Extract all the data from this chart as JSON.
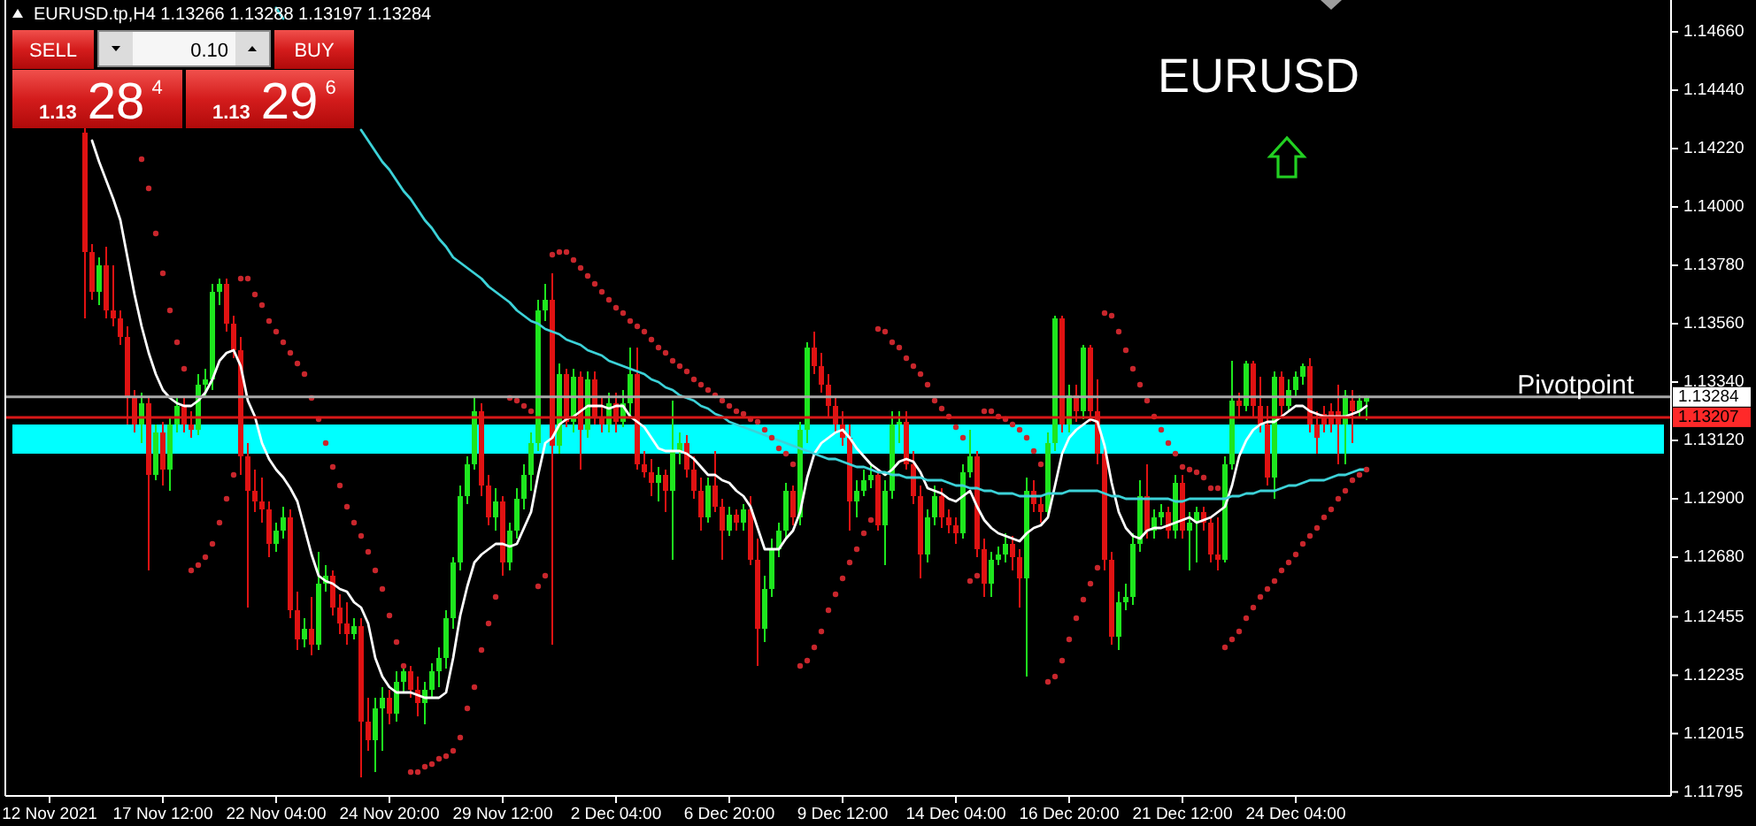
{
  "chart_data": {
    "type": "candlestick",
    "title": "EURUSD",
    "categories": [
      "12 Nov 2021",
      null,
      null,
      null,
      null,
      null,
      null,
      null,
      null,
      null,
      null,
      null,
      null,
      null,
      null,
      null,
      "17 Nov 12:00",
      null,
      null,
      null,
      null,
      null,
      null,
      null,
      null,
      null,
      null,
      null,
      null,
      null,
      null,
      null,
      "22 Nov 04:00",
      null,
      null,
      null,
      null,
      null,
      null,
      null,
      null,
      null,
      null,
      null,
      null,
      null,
      null,
      null,
      "24 Nov 20:00",
      null,
      null,
      null,
      null,
      null,
      null,
      null,
      null,
      null,
      null,
      null,
      null,
      null,
      null,
      null,
      "29 Nov 12:00",
      null,
      null,
      null,
      null,
      null,
      null,
      null,
      null,
      null,
      null,
      null,
      null,
      null,
      null,
      null,
      "2 Dec 04:00",
      null,
      null,
      null,
      null,
      null,
      null,
      null,
      null,
      null,
      null,
      null,
      null,
      null,
      null,
      null,
      "6 Dec 20:00",
      null,
      null,
      null,
      null,
      null,
      null,
      null,
      null,
      null,
      null,
      null,
      null,
      null,
      null,
      null,
      "9 Dec 12:00",
      null,
      null,
      null,
      null,
      null,
      null,
      null,
      null,
      null,
      null,
      null,
      null,
      null,
      null,
      null,
      "14 Dec 04:00",
      null,
      null,
      null,
      null,
      null,
      null,
      null,
      null,
      null,
      null,
      null,
      null,
      null,
      null,
      null,
      "16 Dec 20:00",
      null,
      null,
      null,
      null,
      null,
      null,
      null,
      null,
      null,
      null,
      null,
      null,
      null,
      null,
      null,
      "21 Dec 12:00",
      null,
      null,
      null,
      null,
      null,
      null,
      null,
      null,
      null,
      null,
      null,
      null,
      null,
      null,
      null,
      "24 Dec 04:00",
      null,
      null,
      null,
      null,
      null,
      null,
      null,
      null,
      null,
      null
    ],
    "ohlc": [
      null,
      null,
      null,
      null,
      null,
      [
        1.1428,
        1.143,
        1.1358,
        1.1383
      ],
      [
        1.1383,
        1.1386,
        1.1365,
        1.1368
      ],
      [
        1.1368,
        1.1381,
        1.1363,
        1.1378
      ],
      [
        1.1378,
        1.1385,
        1.1358,
        1.1361
      ],
      [
        1.1361,
        1.1378,
        1.1355,
        1.1358
      ],
      [
        1.1358,
        1.1361,
        1.1348,
        1.1351
      ],
      [
        1.1351,
        1.1355,
        1.1318,
        1.1328
      ],
      [
        1.1328,
        1.1331,
        1.1315,
        1.1318
      ],
      [
        1.1318,
        1.133,
        1.1311,
        1.1326
      ],
      [
        1.1326,
        1.1328,
        1.1263,
        1.1299
      ],
      [
        1.1299,
        1.1318,
        1.1297,
        1.1315
      ],
      [
        1.1315,
        1.1319,
        1.1295,
        1.1301
      ],
      [
        1.1301,
        1.1321,
        1.1293,
        1.1318
      ],
      [
        1.1318,
        1.1328,
        1.1315,
        1.1325
      ],
      [
        1.1325,
        1.1328,
        1.1315,
        1.1318
      ],
      [
        1.1318,
        1.1323,
        1.1313,
        1.1316
      ],
      [
        1.1316,
        1.1337,
        1.1314,
        1.1333
      ],
      [
        1.1333,
        1.1339,
        1.1328,
        1.1335
      ],
      [
        1.1335,
        1.1371,
        1.1331,
        1.1368
      ],
      [
        1.1368,
        1.1373,
        1.1363,
        1.1371
      ],
      [
        1.1371,
        1.1373,
        1.1353,
        1.1356
      ],
      [
        1.1356,
        1.1359,
        1.1343,
        1.1346
      ],
      [
        1.1346,
        1.1351,
        1.1299,
        1.1306
      ],
      [
        1.1306,
        1.1311,
        1.1249,
        1.1293
      ],
      [
        1.1293,
        1.1301,
        1.1285,
        1.1289
      ],
      [
        1.1289,
        1.1298,
        1.1281,
        1.1286
      ],
      [
        1.1286,
        1.1289,
        1.1268,
        1.1273
      ],
      [
        1.1273,
        1.1281,
        1.127,
        1.1278
      ],
      [
        1.1278,
        1.1287,
        1.1275,
        1.1283
      ],
      [
        1.1283,
        1.1286,
        1.1245,
        1.1248
      ],
      [
        1.1248,
        1.1255,
        1.1233,
        1.1237
      ],
      [
        1.1237,
        1.1245,
        1.1234,
        1.1241
      ],
      [
        1.1241,
        1.1253,
        1.1231,
        1.1235
      ],
      [
        1.1235,
        1.127,
        1.1233,
        1.1258
      ],
      [
        1.1258,
        1.1265,
        1.1255,
        1.1261
      ],
      [
        1.1261,
        1.1263,
        1.1246,
        1.1249
      ],
      [
        1.1249,
        1.1254,
        1.1239,
        1.1243
      ],
      [
        1.1243,
        1.1251,
        1.1235,
        1.1239
      ],
      [
        1.1239,
        1.1245,
        1.1237,
        1.1242
      ],
      [
        1.1242,
        1.1245,
        1.1185,
        1.1206
      ],
      [
        1.1206,
        1.1215,
        1.1195,
        1.1199
      ],
      [
        1.1199,
        1.1215,
        1.1187,
        1.1211
      ],
      [
        1.1211,
        1.1219,
        1.1195,
        1.1215
      ],
      [
        1.1215,
        1.1218,
        1.1205,
        1.1209
      ],
      [
        1.1209,
        1.1225,
        1.1206,
        1.1221
      ],
      [
        1.1221,
        1.1228,
        1.1217,
        1.1225
      ],
      [
        1.1225,
        1.1227,
        1.1215,
        1.1218
      ],
      [
        1.1218,
        1.1223,
        1.1208,
        1.1213
      ],
      [
        1.1213,
        1.1221,
        1.1205,
        1.1218
      ],
      [
        1.1218,
        1.1228,
        1.1215,
        1.1225
      ],
      [
        1.1225,
        1.1234,
        1.1219,
        1.123
      ],
      [
        1.123,
        1.1248,
        1.1226,
        1.1245
      ],
      [
        1.1245,
        1.1268,
        1.1241,
        1.1266
      ],
      [
        1.1266,
        1.1295,
        1.1263,
        1.1291
      ],
      [
        1.1291,
        1.1306,
        1.1288,
        1.1303
      ],
      [
        1.1303,
        1.1328,
        1.1301,
        1.1323
      ],
      [
        1.1323,
        1.1326,
        1.1291,
        1.1295
      ],
      [
        1.1295,
        1.1299,
        1.128,
        1.1283
      ],
      [
        1.1283,
        1.1294,
        1.1278,
        1.1289
      ],
      [
        1.1289,
        1.1291,
        1.1261,
        1.1266
      ],
      [
        1.1266,
        1.1281,
        1.1263,
        1.1278
      ],
      [
        1.1278,
        1.1294,
        1.1275,
        1.129
      ],
      [
        1.129,
        1.1303,
        1.1286,
        1.1299
      ],
      [
        1.1299,
        1.1315,
        1.1293,
        1.1311
      ],
      [
        1.1311,
        1.1365,
        1.1308,
        1.1361
      ],
      [
        1.1361,
        1.1371,
        1.1357,
        1.1365
      ],
      [
        1.1365,
        1.1375,
        1.1235,
        1.131
      ],
      [
        1.131,
        1.1341,
        1.1307,
        1.1337
      ],
      [
        1.1337,
        1.1339,
        1.1317,
        1.1319
      ],
      [
        1.1319,
        1.1339,
        1.1315,
        1.1336
      ],
      [
        1.1336,
        1.1338,
        1.1301,
        1.1316
      ],
      [
        1.1316,
        1.1338,
        1.1313,
        1.1335
      ],
      [
        1.1335,
        1.1338,
        1.1318,
        1.1321
      ],
      [
        1.1321,
        1.1328,
        1.1315,
        1.1318
      ],
      [
        1.1318,
        1.133,
        1.1315,
        1.1326
      ],
      [
        1.1326,
        1.133,
        1.1315,
        1.1319
      ],
      [
        1.1319,
        1.1331,
        1.1317,
        1.1326
      ],
      [
        1.1326,
        1.1347,
        1.1321,
        1.1337
      ],
      [
        1.1337,
        1.1347,
        1.1301,
        1.1303
      ],
      [
        1.1303,
        1.1308,
        1.1298,
        1.13
      ],
      [
        1.13,
        1.1305,
        1.1291,
        1.1296
      ],
      [
        1.1296,
        1.1302,
        1.1289,
        1.1299
      ],
      [
        1.1299,
        1.1301,
        1.1285,
        1.1293
      ],
      [
        1.1293,
        1.1327,
        1.1267,
        1.1308
      ],
      [
        1.1308,
        1.1315,
        1.1303,
        1.1311
      ],
      [
        1.1311,
        1.1314,
        1.1298,
        1.1301
      ],
      [
        1.1301,
        1.1306,
        1.129,
        1.1293
      ],
      [
        1.1293,
        1.1298,
        1.1278,
        1.1283
      ],
      [
        1.1283,
        1.1298,
        1.1281,
        1.1295
      ],
      [
        1.1295,
        1.1308,
        1.1285,
        1.1287
      ],
      [
        1.1287,
        1.129,
        1.1267,
        1.1278
      ],
      [
        1.1278,
        1.1287,
        1.1276,
        1.1284
      ],
      [
        1.1284,
        1.1286,
        1.1278,
        1.1281
      ],
      [
        1.1281,
        1.1288,
        1.1278,
        1.1286
      ],
      [
        1.1286,
        1.1291,
        1.1265,
        1.1267
      ],
      [
        1.1267,
        1.1275,
        1.1227,
        1.1241
      ],
      [
        1.1241,
        1.1261,
        1.1236,
        1.1256
      ],
      [
        1.1256,
        1.1275,
        1.1253,
        1.1271
      ],
      [
        1.1271,
        1.1281,
        1.1268,
        1.1278
      ],
      [
        1.1278,
        1.1296,
        1.1275,
        1.1293
      ],
      [
        1.1293,
        1.1295,
        1.128,
        1.1283
      ],
      [
        1.1283,
        1.1319,
        1.128,
        1.1316
      ],
      [
        1.1316,
        1.1349,
        1.1311,
        1.1347
      ],
      [
        1.1347,
        1.1353,
        1.1337,
        1.134
      ],
      [
        1.134,
        1.1345,
        1.133,
        1.1333
      ],
      [
        1.1333,
        1.1337,
        1.1321,
        1.1325
      ],
      [
        1.1325,
        1.1328,
        1.1315,
        1.1318
      ],
      [
        1.1318,
        1.1323,
        1.131,
        1.1313
      ],
      [
        1.1313,
        1.1318,
        1.1278,
        1.1289
      ],
      [
        1.1289,
        1.1297,
        1.1283,
        1.1293
      ],
      [
        1.1293,
        1.1301,
        1.1291,
        1.1297
      ],
      [
        1.1297,
        1.1303,
        1.1294,
        1.1299
      ],
      [
        1.1299,
        1.1301,
        1.1278,
        1.128
      ],
      [
        1.128,
        1.1297,
        1.1265,
        1.1293
      ],
      [
        1.1293,
        1.1323,
        1.129,
        1.1318
      ],
      [
        1.1318,
        1.1323,
        1.1311,
        1.1319
      ],
      [
        1.1319,
        1.1323,
        1.1301,
        1.1303
      ],
      [
        1.1303,
        1.1308,
        1.1288,
        1.1291
      ],
      [
        1.1291,
        1.1295,
        1.126,
        1.1269
      ],
      [
        1.1269,
        1.1286,
        1.1266,
        1.1283
      ],
      [
        1.1283,
        1.1295,
        1.128,
        1.1291
      ],
      [
        1.1291,
        1.1294,
        1.1279,
        1.1283
      ],
      [
        1.1283,
        1.1286,
        1.1277,
        1.128
      ],
      [
        1.128,
        1.1283,
        1.1273,
        1.1277
      ],
      [
        1.1277,
        1.1303,
        1.1275,
        1.13
      ],
      [
        1.13,
        1.1316,
        1.1298,
        1.1306
      ],
      [
        1.1306,
        1.1308,
        1.1268,
        1.1271
      ],
      [
        1.1271,
        1.1275,
        1.1253,
        1.1258
      ],
      [
        1.1258,
        1.127,
        1.1253,
        1.1267
      ],
      [
        1.1267,
        1.1272,
        1.1265,
        1.1269
      ],
      [
        1.1269,
        1.1277,
        1.1266,
        1.1273
      ],
      [
        1.1273,
        1.1276,
        1.1263,
        1.1268
      ],
      [
        1.1268,
        1.1271,
        1.1249,
        1.126
      ],
      [
        1.126,
        1.1298,
        1.1223,
        1.1293
      ],
      [
        1.1293,
        1.1297,
        1.1285,
        1.1288
      ],
      [
        1.1288,
        1.1291,
        1.1281,
        1.1285
      ],
      [
        1.1285,
        1.1315,
        1.1283,
        1.1311
      ],
      [
        1.1311,
        1.1359,
        1.1308,
        1.1358
      ],
      [
        1.1358,
        1.1359,
        1.1315,
        1.1318
      ],
      [
        1.1318,
        1.1333,
        1.1315,
        1.1329
      ],
      [
        1.1329,
        1.1333,
        1.1319,
        1.1323
      ],
      [
        1.1323,
        1.1348,
        1.132,
        1.1347
      ],
      [
        1.1347,
        1.1348,
        1.1319,
        1.1323
      ],
      [
        1.1323,
        1.1335,
        1.1303,
        1.1307
      ],
      [
        1.1307,
        1.131,
        1.1263,
        1.1267
      ],
      [
        1.1267,
        1.127,
        1.1235,
        1.1238
      ],
      [
        1.1238,
        1.1255,
        1.1233,
        1.1251
      ],
      [
        1.1251,
        1.1258,
        1.1248,
        1.1253
      ],
      [
        1.1253,
        1.1277,
        1.125,
        1.1273
      ],
      [
        1.1273,
        1.1297,
        1.127,
        1.1291
      ],
      [
        1.1291,
        1.1303,
        1.1275,
        1.1278
      ],
      [
        1.1278,
        1.1286,
        1.1275,
        1.1283
      ],
      [
        1.1283,
        1.1288,
        1.128,
        1.1285
      ],
      [
        1.1285,
        1.1287,
        1.1275,
        1.1278
      ],
      [
        1.1278,
        1.1299,
        1.1275,
        1.1296
      ],
      [
        1.1296,
        1.1299,
        1.1275,
        1.1278
      ],
      [
        1.1278,
        1.1285,
        1.1263,
        1.1281
      ],
      [
        1.1281,
        1.1287,
        1.1266,
        1.1285
      ],
      [
        1.1285,
        1.1287,
        1.1278,
        1.1281
      ],
      [
        1.1281,
        1.1283,
        1.1266,
        1.1269
      ],
      [
        1.1269,
        1.1283,
        1.1263,
        1.1267
      ],
      [
        1.1267,
        1.1306,
        1.1266,
        1.1303
      ],
      [
        1.1303,
        1.1342,
        1.1301,
        1.1327
      ],
      [
        1.1327,
        1.133,
        1.1321,
        1.1325
      ],
      [
        1.1325,
        1.1342,
        1.1323,
        1.1341
      ],
      [
        1.1341,
        1.1342,
        1.1321,
        1.1325
      ],
      [
        1.1325,
        1.1336,
        1.1315,
        1.1318
      ],
      [
        1.1318,
        1.1325,
        1.1295,
        1.1298
      ],
      [
        1.1298,
        1.1338,
        1.129,
        1.1336
      ],
      [
        1.1336,
        1.1338,
        1.1321,
        1.1325
      ],
      [
        1.1325,
        1.1335,
        1.1323,
        1.1331
      ],
      [
        1.1331,
        1.1338,
        1.1328,
        1.1336
      ],
      [
        1.1336,
        1.1341,
        1.1333,
        1.134
      ],
      [
        1.134,
        1.1343,
        1.1315,
        1.1318
      ],
      [
        1.1318,
        1.1323,
        1.1307,
        1.1313
      ],
      [
        1.1322,
        1.1325,
        1.1315,
        1.1318
      ],
      [
        1.1323,
        1.1326,
        1.1315,
        1.1318
      ],
      [
        1.1323,
        1.1333,
        1.1303,
        1.1318
      ],
      [
        1.1318,
        1.1331,
        1.1303,
        1.1329
      ],
      [
        1.1327,
        1.1331,
        1.1311,
        1.1323
      ],
      [
        1.1323,
        1.1329,
        1.1321,
        1.1327
      ],
      [
        1.13266,
        1.13288,
        1.13197,
        1.13284
      ]
    ],
    "series": [
      {
        "type": "line",
        "color": "#ffffff",
        "values": [
          null,
          null,
          null,
          null,
          null,
          null,
          1.1425,
          1.1417,
          1.141,
          1.1403,
          1.1395,
          1.1381,
          1.1367,
          1.1355,
          1.1345,
          1.1337,
          1.1331,
          1.1328,
          1.1326,
          1.1325,
          1.1325,
          1.1327,
          1.133,
          1.1335,
          1.1342,
          1.1345,
          1.1346,
          1.134,
          1.1327,
          1.1321,
          1.1311,
          1.1305,
          1.1301,
          1.1298,
          1.1294,
          1.1289,
          1.1279,
          1.1269,
          1.1261,
          1.1259,
          1.1258,
          1.1256,
          1.1255,
          1.1251,
          1.1249,
          1.1243,
          1.123,
          1.1223,
          1.1219,
          1.1217,
          1.1217,
          1.1217,
          1.1216,
          1.1215,
          1.1215,
          1.1215,
          1.1217,
          1.123,
          1.1246,
          1.1257,
          1.1266,
          1.1269,
          1.1271,
          1.1273,
          1.1273,
          1.1272,
          1.1273,
          1.1279,
          1.1285,
          1.1299,
          1.1311,
          1.1313,
          1.1318,
          1.132,
          1.1321,
          1.1323,
          1.1325,
          1.1325,
          1.1325,
          1.1324,
          1.1325,
          1.1325,
          1.1321,
          1.1319,
          1.1317,
          1.1313,
          1.1309,
          1.1308,
          1.1308,
          1.1308,
          1.1307,
          1.1305,
          1.1302,
          1.1299,
          1.1299,
          1.1297,
          1.1296,
          1.1293,
          1.1291,
          1.1287,
          1.1279,
          1.1271,
          1.1271,
          1.1271,
          1.1275,
          1.1278,
          1.1285,
          1.1298,
          1.1307,
          1.1311,
          1.1313,
          1.1315,
          1.1316,
          1.1313,
          1.1309,
          1.1306,
          1.1303,
          1.1301,
          1.1299,
          1.1301,
          1.1304,
          1.1305,
          1.1304,
          1.13,
          1.1294,
          1.1293,
          1.1292,
          1.129,
          1.1289,
          1.1291,
          1.1293,
          1.1287,
          1.1282,
          1.1279,
          1.1277,
          1.1276,
          1.1275,
          1.1274,
          1.1277,
          1.1279,
          1.128,
          1.1283,
          1.1295,
          1.1307,
          1.1313,
          1.1316,
          1.1318,
          1.132,
          1.1319,
          1.131,
          1.1296,
          1.1285,
          1.1279,
          1.1276,
          1.1275,
          1.1278,
          1.1279,
          1.1279,
          1.128,
          1.1281,
          1.1282,
          1.1283,
          1.1281,
          1.1282,
          1.1283,
          1.1285,
          1.1287,
          1.1295,
          1.1306,
          1.1312,
          1.1316,
          1.1318,
          1.1319,
          1.1319,
          1.1321,
          1.1323,
          1.1325,
          1.1325,
          1.1323,
          1.1322,
          1.1321,
          1.1321,
          1.1321,
          1.1321,
          1.1322,
          1.1323,
          1.1325
        ]
      },
      {
        "type": "line",
        "color": "#3cd2d8",
        "values": [
          null,
          null,
          null,
          null,
          null,
          null,
          null,
          null,
          null,
          null,
          null,
          null,
          null,
          null,
          null,
          null,
          null,
          null,
          null,
          null,
          null,
          null,
          null,
          null,
          null,
          null,
          null,
          null,
          null,
          null,
          null,
          null,
          1.1475,
          1.1471,
          null,
          null,
          null,
          null,
          null,
          null,
          null,
          null,
          null,
          null,
          1.1429,
          1.1425,
          1.1421,
          1.1417,
          1.1414,
          1.141,
          1.1406,
          1.1403,
          1.1399,
          1.1395,
          1.1392,
          1.1388,
          1.1385,
          1.1381,
          1.1379,
          1.1377,
          1.1375,
          1.1373,
          1.137,
          1.1368,
          1.1366,
          1.1364,
          1.1361,
          1.1359,
          1.1357,
          1.1356,
          1.1354,
          1.1353,
          1.1352,
          1.135,
          1.1349,
          1.1348,
          1.1346,
          1.1345,
          1.1344,
          1.1342,
          1.1341,
          1.134,
          1.1339,
          1.1338,
          1.1337,
          1.1335,
          1.1334,
          1.1332,
          1.1331,
          1.1329,
          1.1328,
          1.1327,
          1.1325,
          1.1324,
          1.1322,
          1.1321,
          1.1319,
          1.1318,
          1.1317,
          1.1316,
          1.1315,
          1.1314,
          1.1313,
          1.1312,
          1.1311,
          1.131,
          1.1309,
          1.1308,
          1.1307,
          1.1306,
          1.1305,
          1.1305,
          1.1304,
          1.1303,
          1.1302,
          1.1302,
          1.1301,
          1.13,
          1.13,
          1.1299,
          1.1299,
          1.1298,
          1.1298,
          1.1298,
          1.1297,
          1.1297,
          1.1297,
          1.1296,
          1.1295,
          1.1295,
          1.1294,
          1.1294,
          1.1293,
          1.1293,
          1.1292,
          1.1292,
          1.1292,
          1.1291,
          1.1291,
          1.1291,
          1.1291,
          1.1292,
          1.1292,
          1.1292,
          1.1293,
          1.1293,
          1.1293,
          1.1293,
          1.1293,
          1.1292,
          1.1291,
          1.1291,
          1.129,
          1.129,
          1.129,
          1.129,
          1.129,
          1.129,
          1.129,
          1.1289,
          1.1289,
          1.129,
          1.129,
          1.129,
          1.129,
          1.129,
          1.129,
          1.1291,
          1.1291,
          1.1292,
          1.1292,
          1.1293,
          1.1293,
          1.1293,
          1.1294,
          1.1295,
          1.1295,
          1.1296,
          1.1297,
          1.1297,
          1.1297,
          1.1298,
          1.1299,
          1.1299,
          1.13,
          1.1301,
          1.1301
        ]
      },
      {
        "type": "scatter",
        "color": "#c8262c",
        "marker": "circle",
        "values": [
          null,
          null,
          null,
          null,
          null,
          null,
          null,
          null,
          null,
          null,
          null,
          null,
          null,
          1.1418,
          1.1407,
          1.139,
          1.1375,
          1.1361,
          1.1349,
          1.1339,
          1.1263,
          1.1265,
          1.1268,
          1.1273,
          1.1281,
          1.129,
          1.1299,
          1.1373,
          1.1373,
          1.1367,
          1.1363,
          1.1357,
          1.1353,
          1.1349,
          1.1345,
          1.1341,
          1.1337,
          1.1328,
          1.132,
          1.1311,
          1.1302,
          1.1295,
          1.1287,
          1.1281,
          1.1276,
          1.127,
          1.1263,
          1.1256,
          1.1246,
          1.1236,
          1.1227,
          1.1187,
          1.1187,
          1.1189,
          1.119,
          1.1192,
          1.1193,
          1.1195,
          1.12,
          1.1211,
          1.1219,
          1.1233,
          1.1243,
          1.1253,
          null,
          1.1328,
          1.1327,
          1.1325,
          1.1323,
          1.1257,
          1.1261,
          1.1382,
          1.1383,
          1.1383,
          1.138,
          1.1377,
          1.1374,
          1.1371,
          1.1368,
          1.1365,
          1.1362,
          1.136,
          1.1357,
          1.1355,
          1.1353,
          1.135,
          1.1347,
          1.1345,
          1.1342,
          1.134,
          1.1338,
          1.1335,
          1.1333,
          1.1331,
          1.1329,
          1.1327,
          1.1325,
          1.1323,
          1.1322,
          1.132,
          1.1319,
          1.1316,
          1.1313,
          1.1309,
          1.1307,
          1.1303,
          1.1227,
          1.1229,
          1.1234,
          1.124,
          1.1248,
          1.1254,
          1.126,
          1.1266,
          1.1271,
          1.1277,
          1.1282,
          1.1354,
          1.1353,
          1.1349,
          1.1347,
          1.1343,
          1.134,
          1.1337,
          1.1333,
          1.1327,
          1.1324,
          1.1321,
          1.1317,
          1.1313,
          1.1259,
          1.1261,
          1.1323,
          1.1323,
          1.1321,
          1.132,
          1.1318,
          1.1316,
          1.1313,
          1.1308,
          1.1303,
          1.1221,
          1.1223,
          1.1229,
          1.1237,
          1.1245,
          1.1252,
          1.1258,
          1.1264,
          1.136,
          1.1359,
          1.1353,
          1.1346,
          1.1339,
          1.1333,
          1.1327,
          1.1321,
          1.1316,
          1.1311,
          1.1307,
          1.1302,
          1.1301,
          1.13,
          1.1298,
          1.1294,
          1.1294,
          1.1234,
          1.1237,
          1.124,
          1.1245,
          1.1249,
          1.1253,
          1.1256,
          1.1259,
          1.1263,
          1.1266,
          1.1269,
          1.1273,
          1.1276,
          1.1279,
          1.1283,
          1.1286,
          1.129,
          1.1293,
          1.1297,
          1.1299,
          1.1301
        ]
      }
    ],
    "ylim": [
      1.1178,
      1.1478
    ],
    "yticks": [
      1.11795,
      1.12015,
      1.12235,
      1.12455,
      {
        "value": 1.1268,
        "label": "1.12680"
      },
      {
        "value": 1.129,
        "label": "1.12900"
      },
      {
        "value": 1.1312,
        "label": "1.13120"
      },
      {
        "value": 1.1334,
        "label": "1.13340"
      },
      {
        "value": 1.1356,
        "label": "1.13560"
      },
      {
        "value": 1.1378,
        "label": "1.13780"
      },
      {
        "value": 1.14,
        "label": "1.14000"
      },
      {
        "value": 1.1422,
        "label": "1.14220"
      },
      {
        "value": 1.1444,
        "label": "1.14440"
      },
      {
        "value": 1.1466,
        "label": "1.14660"
      }
    ],
    "ref_lines": [
      {
        "axis": "y",
        "value": 1.13284,
        "label": "1.13284",
        "color": "#a8a8a8"
      },
      {
        "axis": "y",
        "value": 1.13207,
        "label": "1.13207",
        "color": "#d81818"
      }
    ],
    "bands": [
      {
        "axis": "y",
        "from": 1.1307,
        "to": 1.1318,
        "color": "#00ffff"
      }
    ],
    "annotations": [
      "EURUSD.tp,H4 1.13266 1.13288 1.13197 1.13284",
      "SELL",
      "0.10",
      "BUY",
      "1.13 28$^{4}$",
      "1.13 29$^{6}$",
      {
        "text": "Pivotpoint",
        "y": 1.13284
      }
    ]
  }
}
